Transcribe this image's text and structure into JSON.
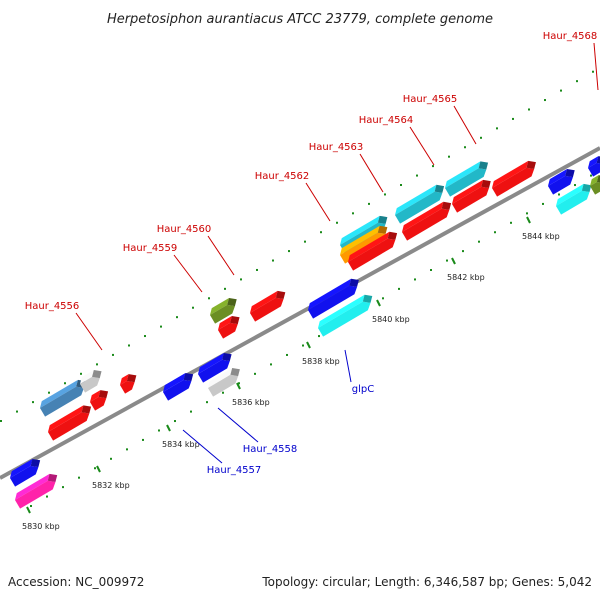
{
  "title": "Herpetosiphon aurantiacus ATCC 23779, complete genome",
  "footer": {
    "accession": "Accession: NC_009972",
    "summary": "Topology: circular; Length: 6,346,587 bp; Genes: 5,042"
  },
  "colors": {
    "forward_label": "#cc0000",
    "reverse_label": "#0000cc",
    "backbone": "#8a8a8a",
    "tick": "#1a8a1a",
    "red": "#ee1111",
    "blue": "#1111ee",
    "cyan": "#22eeee",
    "teal": "#22b8c8",
    "olive": "#6b8e23",
    "steelblue": "#4682b4",
    "gray": "#c8c8c8",
    "orange": "#ff9900",
    "pink": "#ff22aa"
  },
  "ticks": [
    {
      "label": "5830 kbp"
    },
    {
      "label": "5832 kbp"
    },
    {
      "label": "5834 kbp"
    },
    {
      "label": "5836 kbp"
    },
    {
      "label": "5838 kbp"
    },
    {
      "label": "5840 kbp"
    },
    {
      "label": "5842 kbp"
    },
    {
      "label": "5844 kbp"
    }
  ],
  "forward_labels": [
    "Haur_4556",
    "Haur_4559",
    "Haur_4560",
    "Haur_4562",
    "Haur_4563",
    "Haur_4564",
    "Haur_4565",
    "Haur_4568"
  ],
  "reverse_labels": [
    "Haur_4557",
    "Haur_4558",
    "glpC"
  ]
}
